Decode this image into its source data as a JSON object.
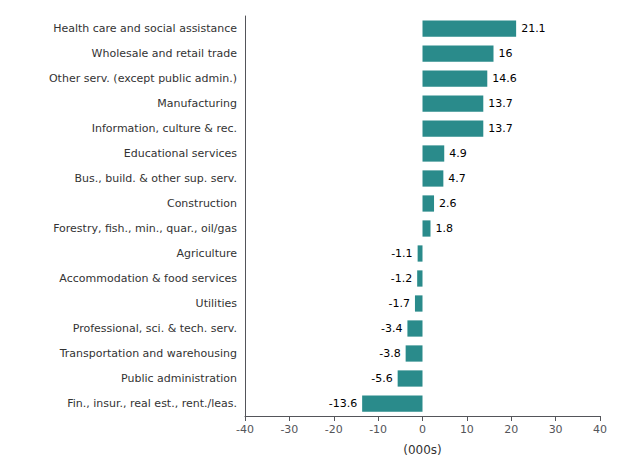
{
  "chart_data": {
    "type": "bar",
    "orientation": "horizontal",
    "categories": [
      "Fin., insur., real est., rent./leas.",
      "Public administration",
      "Transportation and warehousing",
      "Professional, sci. & tech. serv.",
      "Utilities",
      "Accommodation & food services",
      "Agriculture",
      "Forestry, fish., min., quar., oil/gas",
      "Construction",
      "Bus., build. & other sup. serv.",
      "Educational services",
      "Information, culture & rec.",
      "Manufacturing",
      "Other serv. (except public admin.)",
      "Wholesale and retail trade",
      "Health care and social assistance"
    ],
    "values": [
      -13.6,
      -5.6,
      -3.8,
      -3.4,
      -1.7,
      -1.2,
      -1.1,
      1.8,
      2.6,
      4.7,
      4.9,
      13.7,
      13.7,
      14.6,
      16.0,
      21.1
    ],
    "color": "#2a8b8b",
    "xlabel": "(000s)",
    "xlim": [
      -40,
      40
    ],
    "xticks": [
      -40,
      -30,
      -20,
      -10,
      0,
      10,
      20,
      30,
      40
    ],
    "grid": false,
    "data_labels": true
  }
}
